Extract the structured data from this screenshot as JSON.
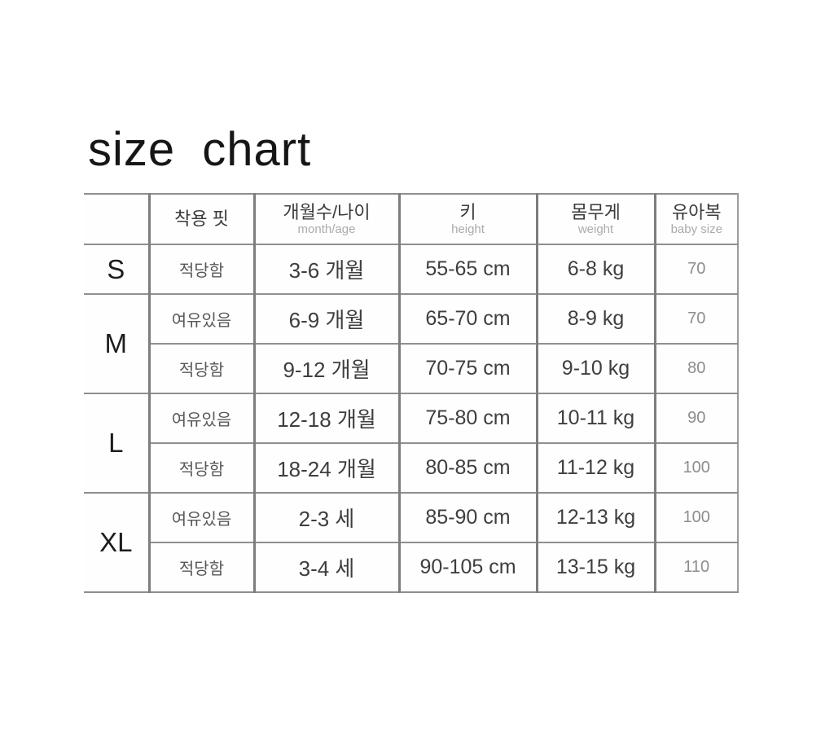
{
  "page": {
    "title": "size chart"
  },
  "colors": {
    "background": "#ffffff",
    "vertical_rule": "#7d7d7d",
    "horizontal_rule": "#8f8f8f",
    "title_text": "#161616",
    "muted_text": "#8d8d8d"
  },
  "chart_data": {
    "type": "table",
    "title": "size chart",
    "columns": [
      {
        "ko": "",
        "en": ""
      },
      {
        "ko": "착용 핏",
        "en": ""
      },
      {
        "ko": "개월수/나이",
        "en": "month/age"
      },
      {
        "ko": "키",
        "en": "height"
      },
      {
        "ko": "몸무게",
        "en": "weight"
      },
      {
        "ko": "유아복",
        "en": "baby size"
      }
    ],
    "size_groups": [
      {
        "label": "S",
        "span": 1
      },
      {
        "label": "M",
        "span": 2
      },
      {
        "label": "L",
        "span": 2
      },
      {
        "label": "XL",
        "span": 2
      }
    ],
    "rows": [
      {
        "fit": "적당함",
        "age": "3-6 개월",
        "height": "55-65 cm",
        "weight": "6-8 kg",
        "baby_size": "70"
      },
      {
        "fit": "여유있음",
        "age": "6-9 개월",
        "height": "65-70 cm",
        "weight": "8-9 kg",
        "baby_size": "70"
      },
      {
        "fit": "적당함",
        "age": "9-12 개월",
        "height": "70-75 cm",
        "weight": "9-10 kg",
        "baby_size": "80"
      },
      {
        "fit": "여유있음",
        "age": "12-18 개월",
        "height": "75-80 cm",
        "weight": "10-11 kg",
        "baby_size": "90"
      },
      {
        "fit": "적당함",
        "age": "18-24 개월",
        "height": "80-85 cm",
        "weight": "11-12 kg",
        "baby_size": "100"
      },
      {
        "fit": "여유있음",
        "age": "2-3 세",
        "height": "85-90 cm",
        "weight": "12-13 kg",
        "baby_size": "100"
      },
      {
        "fit": "적당함",
        "age": "3-4 세",
        "height": "90-105 cm",
        "weight": "13-15 kg",
        "baby_size": "110"
      }
    ]
  }
}
